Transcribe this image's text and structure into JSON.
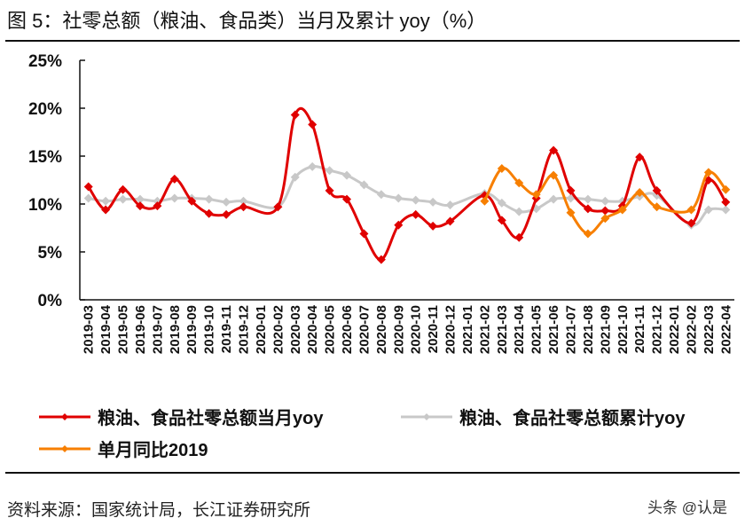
{
  "title": "图 5：社零总额（粮油、食品类）当月及累计 yoy（%）",
  "source": "资料来源：国家统计局，长江证券研究所",
  "watermark": "头条 @认是",
  "chart_data": {
    "type": "line",
    "title": "图 5：社零总额（粮油、食品类）当月及累计 yoy（%）",
    "ylim": [
      0,
      25
    ],
    "yticks": [
      0,
      5,
      10,
      15,
      20,
      25
    ],
    "ytick_labels": [
      "0%",
      "5%",
      "10%",
      "15%",
      "20%",
      "25%"
    ],
    "grid": false,
    "legend_position": "bottom",
    "smooth": true,
    "categories": [
      "2019-03",
      "2019-04",
      "2019-05",
      "2019-06",
      "2019-07",
      "2019-08",
      "2019-09",
      "2019-10",
      "2019-11",
      "2019-12",
      "2020-01",
      "2020-02",
      "2020-03",
      "2020-04",
      "2020-05",
      "2020-06",
      "2020-07",
      "2020-08",
      "2020-09",
      "2020-10",
      "2020-11",
      "2020-12",
      "2021-01",
      "2021-02",
      "2021-03",
      "2021-04",
      "2021-05",
      "2021-06",
      "2021-07",
      "2021-08",
      "2021-09",
      "2021-10",
      "2021-11",
      "2021-12",
      "2022-01",
      "2022-02",
      "2022-03",
      "2022-04"
    ],
    "series": [
      {
        "name": "粮油、食品社零总额当月yoy",
        "color": "#e00000",
        "values": [
          11.8,
          9.4,
          11.5,
          9.8,
          9.8,
          12.6,
          10.3,
          9.0,
          8.9,
          9.7,
          null,
          9.7,
          19.3,
          18.3,
          11.4,
          10.5,
          6.9,
          4.2,
          7.8,
          8.9,
          7.7,
          8.2,
          null,
          10.9,
          8.3,
          6.5,
          10.6,
          15.6,
          11.4,
          9.5,
          9.3,
          9.8,
          14.9,
          11.4,
          null,
          8.0,
          12.5,
          10.2
        ]
      },
      {
        "name": "粮油、食品社零总额累计yoy",
        "color": "#c8c8c8",
        "values": [
          10.6,
          10.3,
          10.5,
          10.5,
          10.3,
          10.6,
          10.6,
          10.5,
          10.2,
          10.3,
          null,
          9.7,
          12.8,
          13.9,
          13.5,
          13.0,
          12.0,
          11.0,
          10.6,
          10.4,
          10.2,
          9.9,
          null,
          11.1,
          10.1,
          9.2,
          9.5,
          10.5,
          10.6,
          10.5,
          10.3,
          10.3,
          10.8,
          10.9,
          null,
          7.8,
          9.4,
          9.4
        ]
      },
      {
        "name": "单月同比2019",
        "color": "#f77f00",
        "values": [
          null,
          null,
          null,
          null,
          null,
          null,
          null,
          null,
          null,
          null,
          null,
          null,
          null,
          null,
          null,
          null,
          null,
          null,
          null,
          null,
          null,
          null,
          null,
          10.3,
          13.7,
          12.2,
          11.0,
          13.0,
          9.1,
          6.9,
          8.5,
          9.4,
          11.2,
          9.7,
          null,
          9.4,
          13.3,
          11.5
        ]
      }
    ]
  }
}
